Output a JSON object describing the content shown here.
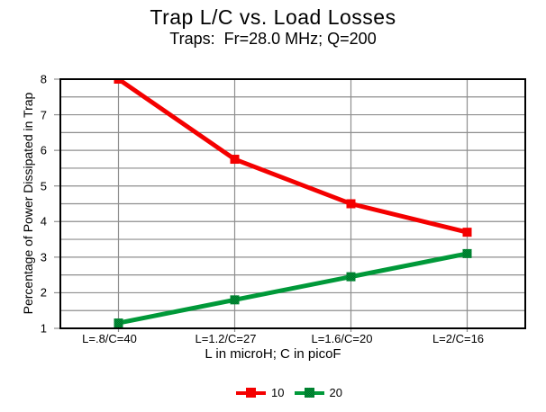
{
  "chart_data": {
    "type": "line",
    "title": "Trap L/C vs. Load Losses",
    "subtitle": "Traps:  Fr=28.0 MHz; Q=200",
    "xlabel": "L in microH; C in picoF",
    "ylabel": "Percentage of Power Dissipated in Trap",
    "categories": [
      "L=.8/C=40",
      "L=1.2/C=27",
      "L=1.6/C=20",
      "L=2/C=16"
    ],
    "series": [
      {
        "name": "10",
        "color": "#f40000",
        "marker": "square",
        "values": [
          8.0,
          5.75,
          4.5,
          3.7
        ]
      },
      {
        "name": "20",
        "color": "#009939",
        "marker": "square-dithered",
        "marker_shade": "#006b28",
        "values": [
          1.15,
          1.8,
          2.45,
          3.1
        ]
      }
    ],
    "ylim": [
      1,
      8
    ],
    "y_major_step": 1,
    "y_minor_step": 0.5,
    "y_tick_labels": [
      "1",
      "2",
      "3",
      "4",
      "5",
      "6",
      "7",
      "8"
    ],
    "grid": true,
    "legend_position": "bottom",
    "colors": {
      "gridline": "#8e8e8e",
      "frame": "#000000",
      "background": "#ffffff",
      "text": "#000000"
    }
  }
}
